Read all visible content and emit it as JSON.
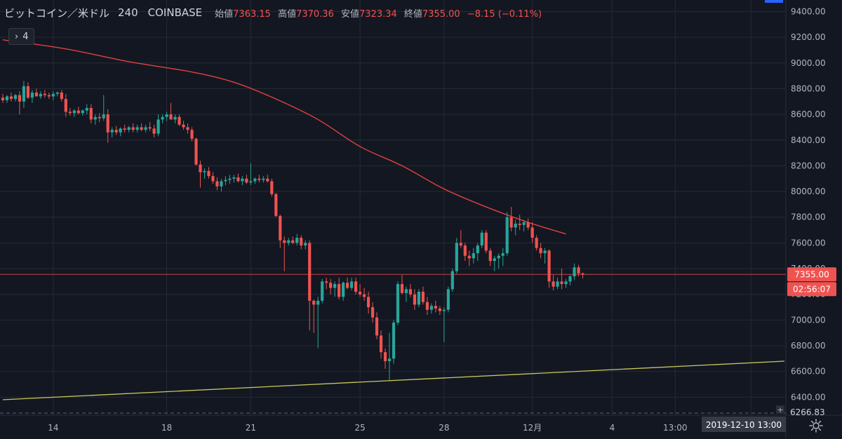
{
  "header": {
    "symbol": "ビットコイン／米ドル",
    "interval": "240",
    "exchange": "COINBASE",
    "open_label": "始値",
    "open": "7363.15",
    "high_label": "高値",
    "high": "7370.36",
    "low_label": "安値",
    "low": "7323.34",
    "close_label": "終値",
    "close": "7355.00",
    "change": "−8.15 (−0.11%)"
  },
  "indicator_toggle": {
    "label": "4"
  },
  "price_tags": {
    "last": "7355.00",
    "countdown": "02:56:07",
    "bottom_cut": "6266.83"
  },
  "date_tag": "2019-12-10   13:00",
  "colors": {
    "background": "#131722",
    "grid": "#262a35",
    "up": "#26a69a",
    "down": "#ef5350",
    "ma": "#e0423c",
    "trend": "#c8c85a",
    "text": "#b2b5be"
  },
  "chart_data": {
    "type": "candlestick",
    "title": "ビットコイン／米ドル 240 COINBASE",
    "y_axis": {
      "range": [
        6260,
        9490
      ],
      "ticks": [
        6400,
        6600,
        6800,
        7000,
        7200,
        7400,
        7600,
        7800,
        8000,
        8200,
        8400,
        8600,
        8800,
        9000,
        9200,
        9400
      ],
      "tick_labels": [
        "6400.00",
        "6600.00",
        "6800.00",
        "7000.00",
        "7200.00",
        "7400.00",
        "7600.00",
        "7800.00",
        "8000.00",
        "8200.00",
        "8400.00",
        "8600.00",
        "8800.00",
        "9000.00",
        "9200.00",
        "9400.00"
      ]
    },
    "x_axis": {
      "range_bars": [
        0,
        186
      ],
      "ticks": [
        {
          "bar": 12,
          "label": "14"
        },
        {
          "bar": 39,
          "label": "18"
        },
        {
          "bar": 59,
          "label": "21"
        },
        {
          "bar": 85,
          "label": "25"
        },
        {
          "bar": 105,
          "label": "28"
        },
        {
          "bar": 126,
          "label": "12月"
        },
        {
          "bar": 145,
          "label": "4"
        },
        {
          "bar": 160,
          "label": "13:00"
        },
        {
          "bar": 178,
          "label": ""
        }
      ]
    },
    "last_price": 7355.0,
    "candles": [
      [
        8730,
        8760,
        8690,
        8710
      ],
      [
        8710,
        8750,
        8690,
        8740
      ],
      [
        8740,
        8770,
        8700,
        8720
      ],
      [
        8720,
        8760,
        8700,
        8750
      ],
      [
        8750,
        8780,
        8600,
        8700
      ],
      [
        8700,
        8860,
        8650,
        8820
      ],
      [
        8820,
        8850,
        8720,
        8730
      ],
      [
        8730,
        8790,
        8690,
        8770
      ],
      [
        8770,
        8800,
        8740,
        8740
      ],
      [
        8740,
        8780,
        8720,
        8760
      ],
      [
        8760,
        8790,
        8730,
        8750
      ],
      [
        8750,
        8770,
        8720,
        8740
      ],
      [
        8740,
        8780,
        8710,
        8760
      ],
      [
        8760,
        8780,
        8740,
        8770
      ],
      [
        8770,
        8790,
        8700,
        8720
      ],
      [
        8720,
        8760,
        8580,
        8620
      ],
      [
        8620,
        8650,
        8590,
        8610
      ],
      [
        8610,
        8640,
        8580,
        8630
      ],
      [
        8630,
        8660,
        8600,
        8610
      ],
      [
        8610,
        8640,
        8590,
        8630
      ],
      [
        8630,
        8680,
        8600,
        8650
      ],
      [
        8650,
        8680,
        8530,
        8560
      ],
      [
        8560,
        8600,
        8520,
        8580
      ],
      [
        8580,
        8610,
        8540,
        8570
      ],
      [
        8570,
        8750,
        8550,
        8600
      ],
      [
        8600,
        8640,
        8380,
        8460
      ],
      [
        8460,
        8500,
        8420,
        8480
      ],
      [
        8480,
        8510,
        8440,
        8460
      ],
      [
        8460,
        8500,
        8430,
        8490
      ],
      [
        8490,
        8520,
        8460,
        8480
      ],
      [
        8480,
        8510,
        8460,
        8500
      ],
      [
        8500,
        8530,
        8460,
        8480
      ],
      [
        8480,
        8520,
        8460,
        8500
      ],
      [
        8500,
        8530,
        8470,
        8480
      ],
      [
        8480,
        8520,
        8460,
        8500
      ],
      [
        8500,
        8540,
        8470,
        8490
      ],
      [
        8490,
        8520,
        8420,
        8450
      ],
      [
        8450,
        8600,
        8430,
        8560
      ],
      [
        8560,
        8600,
        8530,
        8580
      ],
      [
        8580,
        8620,
        8550,
        8600
      ],
      [
        8600,
        8690,
        8560,
        8560
      ],
      [
        8560,
        8600,
        8530,
        8580
      ],
      [
        8580,
        8600,
        8510,
        8520
      ],
      [
        8520,
        8550,
        8480,
        8500
      ],
      [
        8500,
        8530,
        8450,
        8480
      ],
      [
        8480,
        8500,
        8390,
        8410
      ],
      [
        8410,
        8420,
        8200,
        8210
      ],
      [
        8210,
        8240,
        8030,
        8150
      ],
      [
        8150,
        8180,
        8100,
        8160
      ],
      [
        8160,
        8190,
        8100,
        8120
      ],
      [
        8120,
        8150,
        8060,
        8080
      ],
      [
        8080,
        8110,
        8010,
        8040
      ],
      [
        8040,
        8100,
        8000,
        8080
      ],
      [
        8080,
        8120,
        8050,
        8090
      ],
      [
        8090,
        8130,
        8060,
        8100
      ],
      [
        8100,
        8130,
        8070,
        8110
      ],
      [
        8110,
        8140,
        8070,
        8080
      ],
      [
        8080,
        8120,
        8050,
        8100
      ],
      [
        8100,
        8130,
        8060,
        8070
      ],
      [
        8070,
        8220,
        8050,
        8080
      ],
      [
        8080,
        8110,
        8060,
        8100
      ],
      [
        8100,
        8130,
        8070,
        8090
      ],
      [
        8090,
        8120,
        8070,
        8100
      ],
      [
        8100,
        8130,
        8070,
        8080
      ],
      [
        8080,
        8100,
        7960,
        7980
      ],
      [
        7980,
        7990,
        7800,
        7810
      ],
      [
        7810,
        7820,
        7560,
        7620
      ],
      [
        7620,
        7650,
        7380,
        7600
      ],
      [
        7600,
        7640,
        7580,
        7620
      ],
      [
        7620,
        7650,
        7590,
        7600
      ],
      [
        7600,
        7670,
        7580,
        7640
      ],
      [
        7640,
        7660,
        7550,
        7580
      ],
      [
        7580,
        7620,
        7550,
        7600
      ],
      [
        7600,
        7620,
        6920,
        7150
      ],
      [
        7150,
        7160,
        6900,
        7120
      ],
      [
        7120,
        7180,
        6780,
        7150
      ],
      [
        7150,
        7320,
        7130,
        7300
      ],
      [
        7300,
        7330,
        7240,
        7290
      ],
      [
        7290,
        7320,
        7200,
        7250
      ],
      [
        7250,
        7300,
        7180,
        7280
      ],
      [
        7280,
        7330,
        7160,
        7180
      ],
      [
        7180,
        7300,
        7150,
        7290
      ],
      [
        7290,
        7330,
        7240,
        7250
      ],
      [
        7250,
        7330,
        7230,
        7300
      ],
      [
        7300,
        7330,
        7200,
        7220
      ],
      [
        7220,
        7280,
        7180,
        7200
      ],
      [
        7200,
        7250,
        7150,
        7180
      ],
      [
        7180,
        7220,
        7050,
        7100
      ],
      [
        7100,
        7140,
        6980,
        7020
      ],
      [
        7020,
        7060,
        6850,
        6880
      ],
      [
        6880,
        6920,
        6700,
        6750
      ],
      [
        6750,
        6780,
        6620,
        6680
      ],
      [
        6680,
        6900,
        6530,
        6700
      ],
      [
        6700,
        7000,
        6660,
        6980
      ],
      [
        6980,
        7300,
        6960,
        7280
      ],
      [
        7280,
        7350,
        7200,
        7210
      ],
      [
        7210,
        7260,
        7140,
        7240
      ],
      [
        7240,
        7280,
        7180,
        7200
      ],
      [
        7200,
        7240,
        7080,
        7120
      ],
      [
        7120,
        7240,
        7100,
        7220
      ],
      [
        7220,
        7260,
        7120,
        7140
      ],
      [
        7140,
        7180,
        7040,
        7080
      ],
      [
        7080,
        7130,
        7050,
        7110
      ],
      [
        7110,
        7150,
        7060,
        7090
      ],
      [
        7090,
        7110,
        7040,
        7070
      ],
      [
        7070,
        7100,
        6830,
        7080
      ],
      [
        7080,
        7260,
        7060,
        7240
      ],
      [
        7240,
        7400,
        7220,
        7380
      ],
      [
        7380,
        7640,
        7360,
        7600
      ],
      [
        7600,
        7700,
        7560,
        7580
      ],
      [
        7580,
        7600,
        7460,
        7500
      ],
      [
        7500,
        7540,
        7420,
        7480
      ],
      [
        7480,
        7560,
        7440,
        7520
      ],
      [
        7520,
        7600,
        7460,
        7580
      ],
      [
        7580,
        7700,
        7560,
        7680
      ],
      [
        7680,
        7700,
        7520,
        7540
      ],
      [
        7540,
        7560,
        7420,
        7460
      ],
      [
        7460,
        7500,
        7380,
        7480
      ],
      [
        7480,
        7520,
        7400,
        7500
      ],
      [
        7500,
        7560,
        7420,
        7520
      ],
      [
        7520,
        7840,
        7500,
        7800
      ],
      [
        7800,
        7880,
        7690,
        7720
      ],
      [
        7720,
        7780,
        7660,
        7750
      ],
      [
        7750,
        7820,
        7700,
        7740
      ],
      [
        7740,
        7780,
        7690,
        7760
      ],
      [
        7760,
        7790,
        7700,
        7720
      ],
      [
        7720,
        7760,
        7600,
        7640
      ],
      [
        7640,
        7660,
        7540,
        7560
      ],
      [
        7560,
        7600,
        7480,
        7520
      ],
      [
        7520,
        7560,
        7440,
        7540
      ],
      [
        7540,
        7550,
        7250,
        7300
      ],
      [
        7300,
        7350,
        7230,
        7260
      ],
      [
        7260,
        7330,
        7240,
        7300
      ],
      [
        7300,
        7400,
        7240,
        7280
      ],
      [
        7280,
        7320,
        7250,
        7300
      ],
      [
        7300,
        7350,
        7270,
        7340
      ],
      [
        7340,
        7440,
        7310,
        7410
      ],
      [
        7410,
        7430,
        7340,
        7363
      ],
      [
        7363,
        7370,
        7323,
        7355
      ]
    ],
    "moving_average": {
      "name": "MA",
      "points": [
        {
          "bar": 0,
          "value": 9180
        },
        {
          "bar": 15,
          "value": 9110
        },
        {
          "bar": 30,
          "value": 9010
        },
        {
          "bar": 45,
          "value": 8930
        },
        {
          "bar": 55,
          "value": 8850
        },
        {
          "bar": 65,
          "value": 8720
        },
        {
          "bar": 75,
          "value": 8560
        },
        {
          "bar": 85,
          "value": 8350
        },
        {
          "bar": 95,
          "value": 8200
        },
        {
          "bar": 105,
          "value": 8020
        },
        {
          "bar": 115,
          "value": 7880
        },
        {
          "bar": 125,
          "value": 7760
        },
        {
          "bar": 134,
          "value": 7670
        }
      ]
    },
    "trendline": {
      "name": "support",
      "points": [
        {
          "bar": 0,
          "value": 6380
        },
        {
          "bar": 186,
          "value": 6680
        }
      ]
    }
  }
}
